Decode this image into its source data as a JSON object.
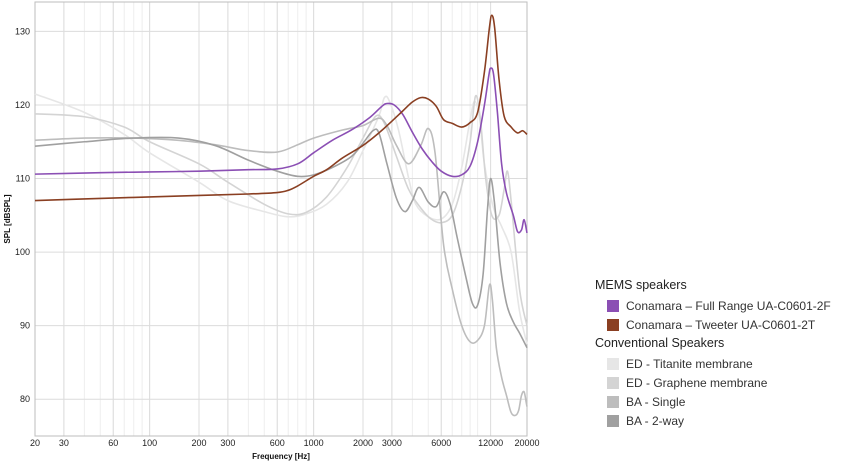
{
  "chart_data": {
    "type": "line",
    "title": "",
    "xlabel": "Frequency [Hz]",
    "ylabel": "SPL [dBSPL]",
    "xscale": "log",
    "xlim": [
      20,
      20000
    ],
    "ylim": [
      75,
      134
    ],
    "grid": true,
    "legend_position": "bottom-right, outside plot",
    "x_ticks": [
      {
        "value": 20,
        "label": "20"
      },
      {
        "value": 30,
        "label": "30"
      },
      {
        "value": 60,
        "label": "60"
      },
      {
        "value": 100,
        "label": "100"
      },
      {
        "value": 200,
        "label": "200"
      },
      {
        "value": 300,
        "label": "300"
      },
      {
        "value": 600,
        "label": "600"
      },
      {
        "value": 1000,
        "label": "1000"
      },
      {
        "value": 2000,
        "label": "2000"
      },
      {
        "value": 3000,
        "label": "3000"
      },
      {
        "value": 6000,
        "label": "6000"
      },
      {
        "value": 12000,
        "label": "12000"
      },
      {
        "value": 20000,
        "label": "20000"
      }
    ],
    "y_ticks": [
      {
        "value": 80,
        "label": "80"
      },
      {
        "value": 90,
        "label": "90"
      },
      {
        "value": 100,
        "label": "100"
      },
      {
        "value": 110,
        "label": "110"
      },
      {
        "value": 120,
        "label": "120"
      },
      {
        "value": 130,
        "label": "130"
      }
    ],
    "legend_groups": [
      {
        "title": "MEMS speakers",
        "series": [
          0,
          1
        ]
      },
      {
        "title": "Conventional Speakers",
        "series": [
          2,
          3,
          4,
          5
        ]
      }
    ],
    "series": [
      {
        "name": "Conamara – Full Range UA-C0601-2F",
        "color": "#8b4fb4",
        "points": [
          [
            20,
            110.6
          ],
          [
            50,
            110.8
          ],
          [
            100,
            110.9
          ],
          [
            200,
            111.0
          ],
          [
            400,
            111.2
          ],
          [
            600,
            111.3
          ],
          [
            800,
            112.0
          ],
          [
            1000,
            113.5
          ],
          [
            1300,
            115.2
          ],
          [
            1700,
            116.6
          ],
          [
            2200,
            118.3
          ],
          [
            2600,
            119.8
          ],
          [
            2800,
            120.2
          ],
          [
            3100,
            120.0
          ],
          [
            3500,
            118.7
          ],
          [
            4000,
            116.3
          ],
          [
            4600,
            114.0
          ],
          [
            5300,
            112.2
          ],
          [
            6000,
            111.0
          ],
          [
            7000,
            110.3
          ],
          [
            8000,
            110.5
          ],
          [
            9000,
            111.7
          ],
          [
            10000,
            115.0
          ],
          [
            11000,
            120.0
          ],
          [
            11700,
            124.0
          ],
          [
            12000,
            125.0
          ],
          [
            12500,
            124.2
          ],
          [
            13200,
            119.0
          ],
          [
            14000,
            112.0
          ],
          [
            15000,
            108.0
          ],
          [
            16500,
            105.0
          ],
          [
            17500,
            102.8
          ],
          [
            18500,
            103.0
          ],
          [
            19200,
            104.4
          ],
          [
            20000,
            102.6
          ]
        ]
      },
      {
        "name": "Conamara – Tweeter UA-C0601-2T",
        "color": "#8a3f22",
        "points": [
          [
            20,
            107.0
          ],
          [
            50,
            107.3
          ],
          [
            100,
            107.5
          ],
          [
            200,
            107.7
          ],
          [
            400,
            107.9
          ],
          [
            600,
            108.1
          ],
          [
            700,
            108.4
          ],
          [
            800,
            109.0
          ],
          [
            1000,
            110.3
          ],
          [
            1200,
            111.2
          ],
          [
            1500,
            112.8
          ],
          [
            2000,
            114.5
          ],
          [
            2500,
            116.2
          ],
          [
            3000,
            117.8
          ],
          [
            3500,
            119.2
          ],
          [
            4000,
            120.4
          ],
          [
            4500,
            121.0
          ],
          [
            5000,
            120.8
          ],
          [
            5600,
            119.8
          ],
          [
            6200,
            118.0
          ],
          [
            7000,
            117.5
          ],
          [
            8000,
            117.0
          ],
          [
            9000,
            117.6
          ],
          [
            10000,
            119.0
          ],
          [
            11000,
            124.5
          ],
          [
            11800,
            130.5
          ],
          [
            12200,
            132.2
          ],
          [
            12700,
            130.5
          ],
          [
            13500,
            123.5
          ],
          [
            14500,
            118.5
          ],
          [
            16000,
            117.0
          ],
          [
            17500,
            116.2
          ],
          [
            18800,
            116.5
          ],
          [
            20000,
            116.0
          ]
        ]
      },
      {
        "name": "ED - Titanite membrane",
        "color": "#e6e6e6",
        "points": [
          [
            20,
            121.5
          ],
          [
            40,
            119.0
          ],
          [
            70,
            116.0
          ],
          [
            100,
            113.5
          ],
          [
            200,
            109.5
          ],
          [
            300,
            107.0
          ],
          [
            500,
            105.5
          ],
          [
            700,
            104.8
          ],
          [
            900,
            105.2
          ],
          [
            1200,
            106.5
          ],
          [
            1600,
            109.5
          ],
          [
            2000,
            113.8
          ],
          [
            2500,
            118.5
          ],
          [
            2700,
            121.0
          ],
          [
            2900,
            120.5
          ],
          [
            3300,
            116.5
          ],
          [
            3800,
            110.0
          ],
          [
            4200,
            106.5
          ],
          [
            5000,
            104.8
          ],
          [
            6000,
            104.5
          ],
          [
            7000,
            106.5
          ],
          [
            8000,
            111.5
          ],
          [
            9000,
            118.0
          ],
          [
            9600,
            120.5
          ],
          [
            10300,
            118.0
          ],
          [
            11000,
            112.0
          ],
          [
            12500,
            106.0
          ],
          [
            14000,
            103.5
          ],
          [
            16000,
            100.0
          ],
          [
            18000,
            92.0
          ],
          [
            20000,
            87.5
          ]
        ]
      },
      {
        "name": "ED - Graphene membrane",
        "color": "#d4d4d4",
        "points": [
          [
            20,
            118.8
          ],
          [
            40,
            118.4
          ],
          [
            70,
            117.0
          ],
          [
            100,
            115.0
          ],
          [
            200,
            112.0
          ],
          [
            300,
            109.5
          ],
          [
            500,
            106.5
          ],
          [
            700,
            105.2
          ],
          [
            900,
            105.4
          ],
          [
            1200,
            107.5
          ],
          [
            1600,
            111.5
          ],
          [
            2000,
            115.5
          ],
          [
            2400,
            118.5
          ],
          [
            2700,
            117.5
          ],
          [
            3200,
            113.0
          ],
          [
            3800,
            108.5
          ],
          [
            4500,
            106.0
          ],
          [
            5200,
            104.5
          ],
          [
            6000,
            104.0
          ],
          [
            7000,
            105.0
          ],
          [
            8000,
            109.0
          ],
          [
            9000,
            115.0
          ],
          [
            9700,
            121.2
          ],
          [
            10400,
            118.0
          ],
          [
            11200,
            110.0
          ],
          [
            12200,
            105.0
          ],
          [
            13500,
            105.0
          ],
          [
            14500,
            108.5
          ],
          [
            15200,
            111.0
          ],
          [
            16000,
            107.0
          ],
          [
            18000,
            95.0
          ],
          [
            20000,
            90.0
          ]
        ]
      },
      {
        "name": "BA - Single",
        "color": "#bdbdbd",
        "points": [
          [
            20,
            115.2
          ],
          [
            40,
            115.5
          ],
          [
            80,
            115.5
          ],
          [
            150,
            115.2
          ],
          [
            250,
            114.6
          ],
          [
            400,
            113.8
          ],
          [
            600,
            113.6
          ],
          [
            800,
            114.6
          ],
          [
            1000,
            115.5
          ],
          [
            1500,
            116.6
          ],
          [
            2000,
            117.2
          ],
          [
            2500,
            118.2
          ],
          [
            2800,
            117.2
          ],
          [
            3200,
            114.5
          ],
          [
            3800,
            112.0
          ],
          [
            4500,
            114.5
          ],
          [
            5000,
            116.8
          ],
          [
            5500,
            113.5
          ],
          [
            6200,
            101.0
          ],
          [
            7000,
            95.0
          ],
          [
            8000,
            90.0
          ],
          [
            9000,
            87.8
          ],
          [
            10000,
            88.0
          ],
          [
            11000,
            90.0
          ],
          [
            11800,
            95.5
          ],
          [
            12300,
            93.5
          ],
          [
            13000,
            87.0
          ],
          [
            14000,
            83.0
          ],
          [
            15000,
            80.5
          ],
          [
            16000,
            78.2
          ],
          [
            17000,
            77.8
          ],
          [
            17800,
            78.5
          ],
          [
            18500,
            80.5
          ],
          [
            19200,
            81.0
          ],
          [
            19800,
            79.5
          ],
          [
            20000,
            79.0
          ]
        ]
      },
      {
        "name": "BA - 2-way",
        "color": "#a0a0a0",
        "points": [
          [
            20,
            114.4
          ],
          [
            40,
            115.0
          ],
          [
            80,
            115.5
          ],
          [
            150,
            115.5
          ],
          [
            250,
            114.5
          ],
          [
            400,
            112.5
          ],
          [
            600,
            111.0
          ],
          [
            800,
            110.3
          ],
          [
            1000,
            110.5
          ],
          [
            1300,
            111.5
          ],
          [
            1700,
            113.0
          ],
          [
            2000,
            114.8
          ],
          [
            2300,
            116.5
          ],
          [
            2500,
            116.2
          ],
          [
            2800,
            112.0
          ],
          [
            3200,
            107.3
          ],
          [
            3600,
            105.5
          ],
          [
            4000,
            107.0
          ],
          [
            4400,
            108.8
          ],
          [
            5000,
            106.8
          ],
          [
            5600,
            106.2
          ],
          [
            6200,
            108.2
          ],
          [
            6800,
            106.5
          ],
          [
            7500,
            102.0
          ],
          [
            8500,
            96.5
          ],
          [
            9300,
            93.0
          ],
          [
            10000,
            92.8
          ],
          [
            10800,
            97.0
          ],
          [
            11500,
            106.0
          ],
          [
            12000,
            110.0
          ],
          [
            12700,
            106.5
          ],
          [
            13700,
            98.5
          ],
          [
            15000,
            93.0
          ],
          [
            16500,
            90.5
          ],
          [
            18000,
            89.0
          ],
          [
            20000,
            87.0
          ]
        ]
      }
    ]
  }
}
